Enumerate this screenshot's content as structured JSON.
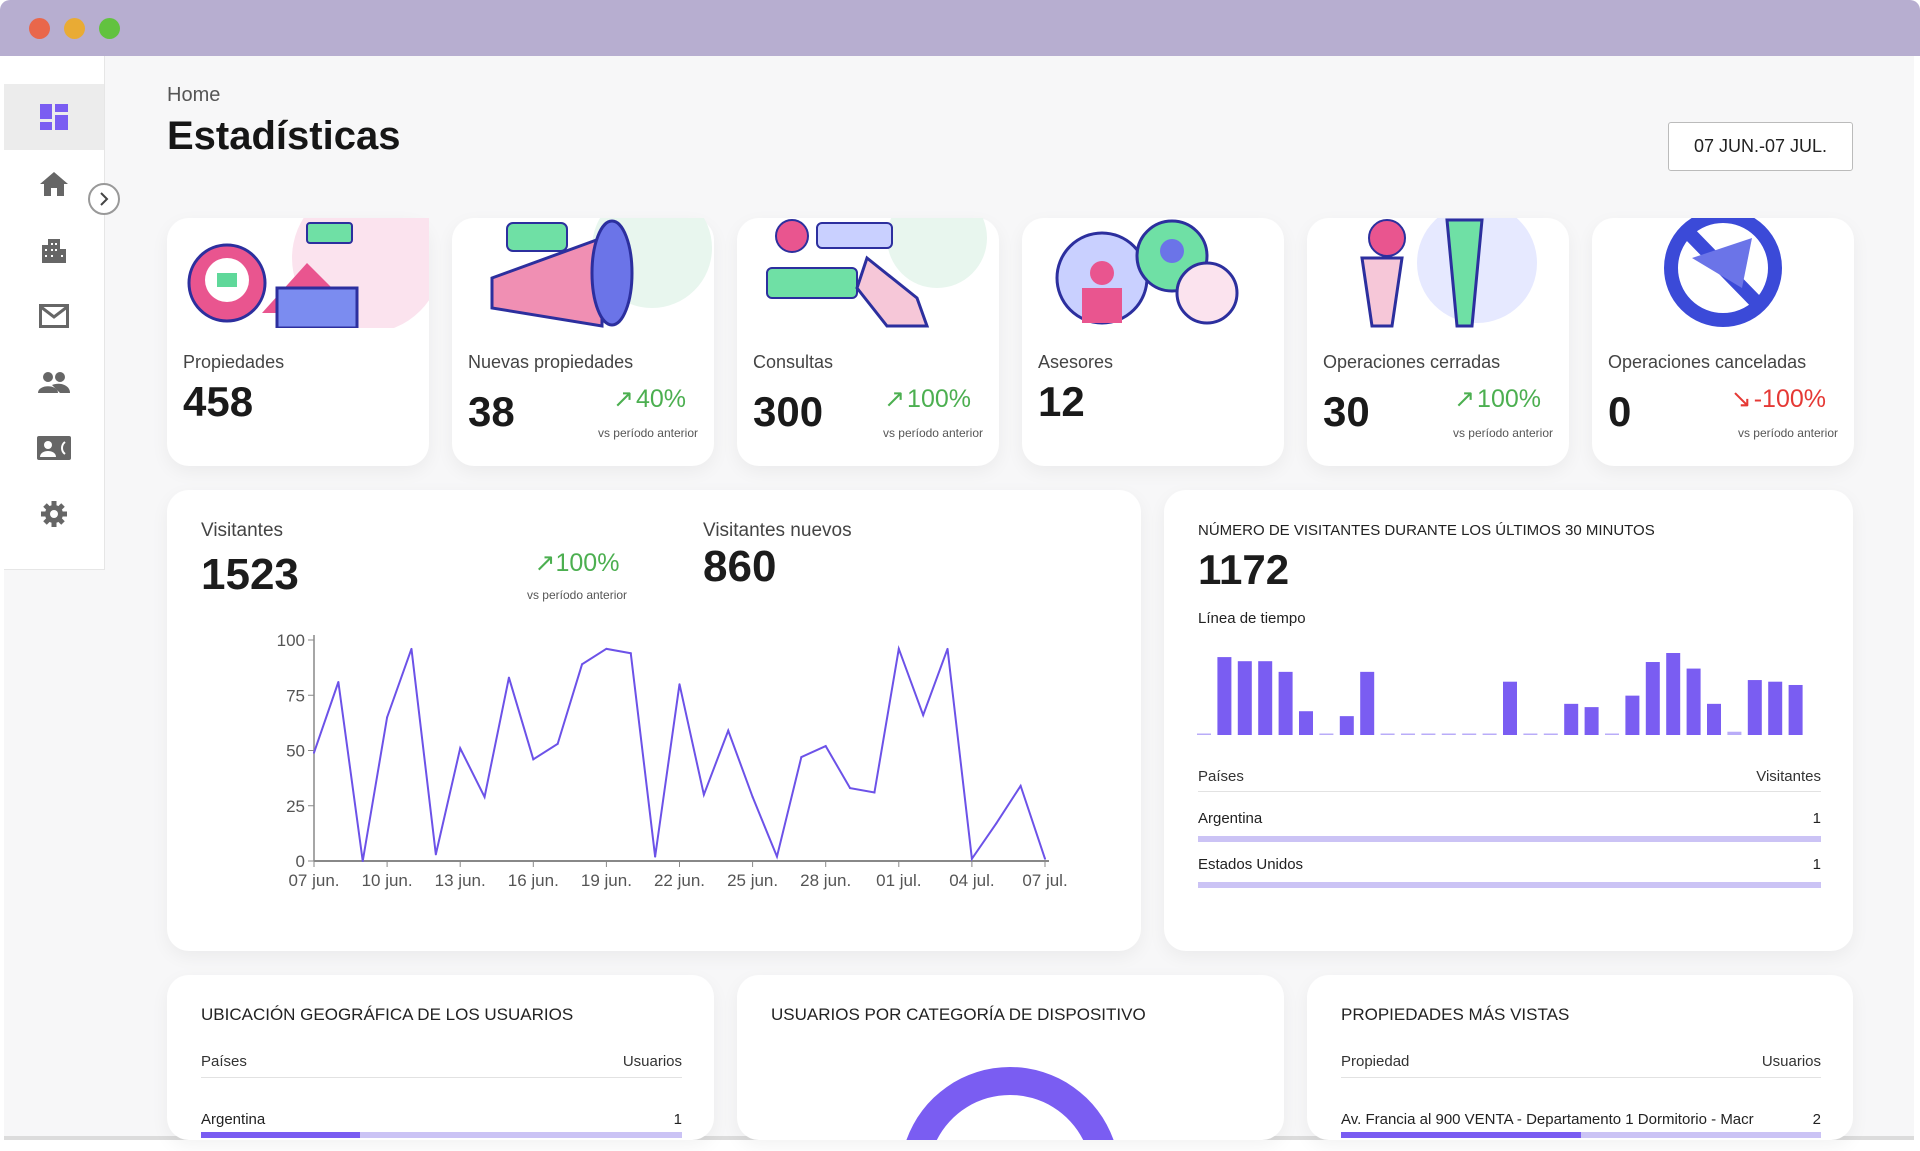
{
  "window": {
    "dots": [
      "#e9674b",
      "#e9ab34",
      "#62c23f"
    ]
  },
  "sidebar": {
    "items": [
      {
        "icon": "dashboard-icon",
        "active": true
      },
      {
        "icon": "home-icon"
      },
      {
        "icon": "building-icon"
      },
      {
        "icon": "mail-icon"
      },
      {
        "icon": "people-icon"
      },
      {
        "icon": "contact-card-icon"
      },
      {
        "icon": "gear-icon"
      }
    ],
    "collapse_icon": "chevron-right-icon"
  },
  "header": {
    "breadcrumb": "Home",
    "title": "Estadísticas",
    "date_range": "07 JUN.-07 JUL."
  },
  "stats": [
    {
      "label": "Propiedades",
      "value": "458"
    },
    {
      "label": "Nuevas propiedades",
      "value": "38",
      "change": "40%",
      "trend": "up",
      "vs": "vs período anterior"
    },
    {
      "label": "Consultas",
      "value": "300",
      "change": "100%",
      "trend": "up",
      "vs": "vs período anterior"
    },
    {
      "label": "Asesores",
      "value": "12"
    },
    {
      "label": "Operaciones cerradas",
      "value": "30",
      "change": "100%",
      "trend": "up",
      "vs": "vs período anterior"
    },
    {
      "label": "Operaciones canceladas",
      "value": "0",
      "change": "-100%",
      "trend": "down",
      "vs": "vs período anterior"
    }
  ],
  "visitors": {
    "label": "Visitantes",
    "value": "1523",
    "change": "100%",
    "vs": "vs período anterior",
    "new_label": "Visitantes nuevos",
    "new_value": "860"
  },
  "chart_data": [
    {
      "type": "line",
      "color": "#6c52e8",
      "x": [
        "07 jun.",
        "08 jun.",
        "09 jun.",
        "10 jun.",
        "11 jun.",
        "12 jun.",
        "13 jun.",
        "14 jun.",
        "15 jun.",
        "16 jun.",
        "17 jun.",
        "18 jun.",
        "19 jun.",
        "20 jun.",
        "21 jun.",
        "22 jun.",
        "23 jun.",
        "24 jun.",
        "25 jun.",
        "26 jun.",
        "27 jun.",
        "28 jun.",
        "29 jun.",
        "30 jun.",
        "01 jul.",
        "02 jul.",
        "03 jul.",
        "04 jul.",
        "05 jul.",
        "06 jul.",
        "07 jul."
      ],
      "values": [
        49,
        81,
        0,
        65,
        96,
        3,
        51,
        29,
        83,
        46,
        53,
        89,
        96,
        94,
        2,
        80,
        30,
        59,
        29,
        2,
        47,
        52,
        33,
        31,
        96,
        66,
        96,
        1,
        17,
        34,
        1
      ],
      "xticks": [
        "07 jun.",
        "10 jun.",
        "13 jun.",
        "16 jun.",
        "19 jun.",
        "22 jun.",
        "25 jun.",
        "28 jun.",
        "01 jul.",
        "04 jul.",
        "07 jul."
      ],
      "yticks": [
        0,
        25,
        50,
        75,
        100
      ],
      "ylim": [
        0,
        100
      ]
    },
    {
      "type": "bar",
      "color": "#7a5df2",
      "title": "Línea de tiempo",
      "values": [
        0,
        9.5,
        9,
        9,
        7.7,
        2.9,
        0.1,
        2.3,
        7.7,
        0,
        0,
        0,
        0,
        0,
        0,
        6.5,
        0,
        0,
        3.8,
        3.4,
        0,
        4.8,
        8.9,
        10,
        8.1,
        3.8,
        0.4,
        6.7,
        6.5,
        6.1
      ]
    }
  ],
  "realtime": {
    "title": "NÚMERO DE VISITANTES DURANTE LOS ÚLTIMOS 30 MINUTOS",
    "value": "1172",
    "timeline_label": "Línea de tiempo",
    "col_country": "Países",
    "col_visitors": "Visitantes",
    "rows": [
      {
        "country": "Argentina",
        "visitors": "1",
        "fill": 1
      },
      {
        "country": "Estados Unidos",
        "visitors": "1",
        "fill": 1
      }
    ]
  },
  "geo": {
    "title": "UBICACIÓN GEOGRÁFICA DE LOS USUARIOS",
    "col_country": "Países",
    "col_users": "Usuarios",
    "rows": [
      {
        "country": "Argentina",
        "users": "1",
        "fill": 0.33
      }
    ]
  },
  "devices": {
    "title": "USUARIOS POR CATEGORÍA DE DISPOSITIVO"
  },
  "top_properties": {
    "title": "PROPIEDADES MÁS VISTAS",
    "col_property": "Propiedad",
    "col_users": "Usuarios",
    "rows": [
      {
        "property": "Av. Francia al 900 VENTA - Departamento 1 Dormitorio - Macr",
        "users": "2",
        "fill": 0.5
      }
    ]
  },
  "colors": {
    "accent": "#7a5df2",
    "up": "#4caf50",
    "down": "#e53935",
    "titlebar": "#b7aed0"
  }
}
